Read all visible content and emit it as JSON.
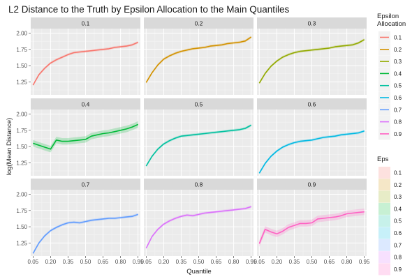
{
  "chart_data": {
    "type": "line",
    "title": "L2 Distance to the Truth by Epsilon Allocation to the Main Quantiles",
    "xlabel": "Quantile",
    "ylabel": "log(Mean Distance)",
    "x_ticks": [
      "0.05",
      "0.20",
      "0.35",
      "0.50",
      "0.65",
      "0.80",
      "0.95"
    ],
    "x_tick_values": [
      0.05,
      0.2,
      0.35,
      0.5,
      0.65,
      0.8,
      0.95
    ],
    "y_ticks": [
      "1.25",
      "1.50",
      "1.75",
      "2.00"
    ],
    "y_tick_values": [
      1.25,
      1.5,
      1.75,
      2.0
    ],
    "xlim": [
      0.03,
      0.97
    ],
    "ylim": [
      1.05,
      2.07
    ],
    "facet_by": "Epsilon Allocation",
    "grid": true,
    "legend_position": "right",
    "legends": [
      {
        "title": "Epsilon\nAllocation",
        "kind": "line",
        "entries": [
          "0.1",
          "0.2",
          "0.3",
          "0.4",
          "0.5",
          "0.6",
          "0.7",
          "0.8",
          "0.9"
        ]
      },
      {
        "title": "Eps",
        "kind": "fill",
        "entries": [
          "0.1",
          "0.2",
          "0.3",
          "0.4",
          "0.5",
          "0.6",
          "0.7",
          "0.8",
          "0.9"
        ]
      }
    ],
    "x": [
      0.05,
      0.1,
      0.15,
      0.2,
      0.25,
      0.3,
      0.35,
      0.4,
      0.45,
      0.5,
      0.55,
      0.6,
      0.65,
      0.7,
      0.75,
      0.8,
      0.85,
      0.9,
      0.95
    ],
    "series": [
      {
        "name": "0.1",
        "color": "#F8766D",
        "band": 0.02,
        "values": [
          1.2,
          1.36,
          1.46,
          1.54,
          1.59,
          1.63,
          1.67,
          1.7,
          1.71,
          1.72,
          1.73,
          1.74,
          1.75,
          1.76,
          1.78,
          1.79,
          1.8,
          1.82,
          1.86
        ]
      },
      {
        "name": "0.2",
        "color": "#D39200",
        "band": 0.02,
        "values": [
          1.24,
          1.39,
          1.51,
          1.6,
          1.65,
          1.69,
          1.72,
          1.74,
          1.76,
          1.77,
          1.78,
          1.8,
          1.81,
          1.82,
          1.84,
          1.85,
          1.86,
          1.88,
          1.94
        ]
      },
      {
        "name": "0.3",
        "color": "#93AA00",
        "band": 0.02,
        "values": [
          1.23,
          1.38,
          1.49,
          1.57,
          1.63,
          1.67,
          1.7,
          1.72,
          1.73,
          1.74,
          1.75,
          1.76,
          1.77,
          1.79,
          1.8,
          1.81,
          1.82,
          1.85,
          1.9
        ]
      },
      {
        "name": "0.4",
        "color": "#00BA38",
        "band": 0.05,
        "values": [
          1.55,
          1.52,
          1.49,
          1.46,
          1.6,
          1.58,
          1.58,
          1.59,
          1.6,
          1.61,
          1.66,
          1.68,
          1.7,
          1.71,
          1.73,
          1.75,
          1.77,
          1.8,
          1.84
        ]
      },
      {
        "name": "0.5",
        "color": "#00C19F",
        "band": 0.02,
        "values": [
          1.2,
          1.35,
          1.46,
          1.54,
          1.59,
          1.63,
          1.66,
          1.67,
          1.68,
          1.69,
          1.7,
          1.71,
          1.72,
          1.73,
          1.74,
          1.75,
          1.76,
          1.78,
          1.83
        ]
      },
      {
        "name": "0.6",
        "color": "#00B9E3",
        "band": 0.02,
        "values": [
          1.09,
          1.24,
          1.35,
          1.43,
          1.49,
          1.53,
          1.56,
          1.58,
          1.59,
          1.6,
          1.62,
          1.64,
          1.65,
          1.66,
          1.68,
          1.69,
          1.7,
          1.71,
          1.74
        ]
      },
      {
        "name": "0.7",
        "color": "#619CFF",
        "band": 0.02,
        "values": [
          1.09,
          1.25,
          1.36,
          1.44,
          1.49,
          1.53,
          1.56,
          1.57,
          1.56,
          1.58,
          1.6,
          1.61,
          1.62,
          1.63,
          1.63,
          1.64,
          1.65,
          1.66,
          1.69
        ]
      },
      {
        "name": "0.8",
        "color": "#DB72FB",
        "band": 0.02,
        "values": [
          1.17,
          1.35,
          1.46,
          1.54,
          1.59,
          1.63,
          1.66,
          1.68,
          1.67,
          1.69,
          1.71,
          1.72,
          1.73,
          1.74,
          1.75,
          1.76,
          1.77,
          1.78,
          1.81
        ]
      },
      {
        "name": "0.9",
        "color": "#FF61C3",
        "band": 0.05,
        "values": [
          1.24,
          1.46,
          1.42,
          1.39,
          1.43,
          1.49,
          1.52,
          1.55,
          1.55,
          1.56,
          1.62,
          1.63,
          1.64,
          1.65,
          1.67,
          1.7,
          1.71,
          1.72,
          1.73
        ]
      }
    ]
  }
}
